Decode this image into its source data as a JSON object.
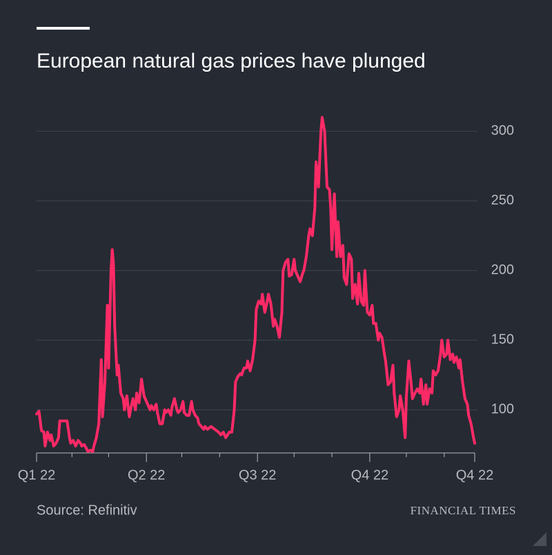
{
  "chart_data": {
    "type": "line",
    "title": "European natural gas prices have plunged",
    "source": "Source: Refinitiv",
    "publisher": "FINANCIAL TIMES",
    "grid": true,
    "xlim": [
      0,
      359
    ],
    "xticks": [
      {
        "value": 0,
        "label": "Q1 22"
      },
      {
        "value": 90,
        "label": "Q2 22"
      },
      {
        "value": 181,
        "label": "Q3 22"
      },
      {
        "value": 273,
        "label": "Q4 22"
      },
      {
        "value": 359,
        "label": "Q4 22"
      }
    ],
    "xminor_ticks": [
      29,
      59,
      119,
      150,
      211,
      242,
      303,
      334
    ],
    "ylim": [
      69,
      320
    ],
    "yticks": [
      100,
      150,
      200,
      250,
      300
    ],
    "series": [
      {
        "name": "European natural gas price",
        "color": "#ff2a66",
        "x": [
          0,
          2,
          4,
          6,
          7,
          9,
          11,
          12,
          14,
          16,
          18,
          19,
          22,
          25,
          27,
          28,
          30,
          32,
          34,
          36,
          37,
          39,
          41,
          42,
          44,
          46,
          47,
          49,
          51,
          53,
          54,
          56,
          58,
          59,
          61,
          62,
          63,
          64,
          66,
          67,
          69,
          71,
          72,
          74,
          76,
          77,
          79,
          81,
          82,
          84,
          86,
          88,
          89,
          91,
          93,
          94,
          96,
          98,
          99,
          101,
          103,
          105,
          106,
          108,
          110,
          111,
          113,
          115,
          116,
          118,
          120,
          121,
          123,
          125,
          127,
          128,
          130,
          132,
          133,
          135,
          137,
          138,
          140,
          143,
          146,
          149,
          151,
          153,
          155,
          158,
          160,
          162,
          163,
          165,
          167,
          168,
          170,
          172,
          173,
          175,
          177,
          179,
          180,
          182,
          184,
          185,
          187,
          189,
          190,
          192,
          194,
          195,
          197,
          199,
          201,
          202,
          204,
          206,
          207,
          209,
          211,
          212,
          214,
          216,
          218,
          219,
          221,
          223,
          224,
          226,
          228,
          229,
          231,
          233,
          234,
          236,
          238,
          240,
          241,
          242,
          244,
          246,
          247,
          249,
          251,
          252,
          254,
          256,
          258,
          259,
          261,
          263,
          264,
          266,
          268,
          269,
          271,
          273,
          275,
          276,
          278,
          280,
          281,
          283,
          285,
          286,
          288,
          290,
          292,
          293,
          295,
          297,
          298,
          300,
          302,
          303,
          305,
          307,
          308,
          310,
          312,
          314,
          315,
          317,
          319,
          320,
          322,
          324,
          325,
          327,
          329,
          331,
          332,
          334,
          336,
          337,
          339,
          341,
          342,
          344,
          346,
          347,
          349,
          351,
          353,
          354,
          356,
          358,
          359
        ],
        "values": [
          97,
          99,
          85,
          84,
          74,
          84,
          78,
          82,
          74,
          76,
          80,
          92,
          92,
          92,
          80,
          76,
          78,
          74,
          78,
          76,
          74,
          75,
          72,
          70,
          71,
          70,
          74,
          80,
          90,
          136,
          95,
          120,
          175,
          130,
          200,
          215,
          205,
          160,
          125,
          132,
          112,
          108,
          100,
          110,
          95,
          100,
          108,
          100,
          112,
          105,
          122,
          110,
          108,
          104,
          100,
          103,
          100,
          104,
          98,
          90,
          90,
          100,
          98,
          100,
          96,
          102,
          108,
          100,
          98,
          100,
          106,
          98,
          96,
          96,
          106,
          100,
          96,
          94,
          90,
          88,
          86,
          88,
          86,
          88,
          86,
          84,
          82,
          84,
          80,
          84,
          84,
          100,
          120,
          124,
          126,
          125,
          130,
          130,
          135,
          128,
          136,
          150,
          172,
          178,
          176,
          183,
          170,
          178,
          183,
          176,
          160,
          165,
          160,
          152,
          170,
          200,
          206,
          208,
          196,
          197,
          208,
          200,
          196,
          192,
          198,
          200,
          210,
          225,
          230,
          225,
          245,
          278,
          260,
          300,
          310,
          300,
          260,
          258,
          245,
          215,
          255,
          210,
          235,
          210,
          218,
          195,
          190,
          212,
          208,
          180,
          190,
          176,
          198,
          178,
          175,
          200,
          170,
          168,
          175,
          162,
          162,
          150,
          155,
          152,
          140,
          135,
          118,
          120,
          132,
          112,
          95,
          100,
          110,
          100,
          80,
          110,
          135,
          118,
          108,
          112,
          115,
          112,
          122,
          104,
          118,
          104,
          115,
          112,
          128,
          125,
          128,
          140,
          150,
          138,
          140,
          150,
          136,
          140,
          134,
          138,
          130,
          136,
          120,
          108,
          104,
          96,
          90,
          80,
          76
        ]
      }
    ]
  }
}
